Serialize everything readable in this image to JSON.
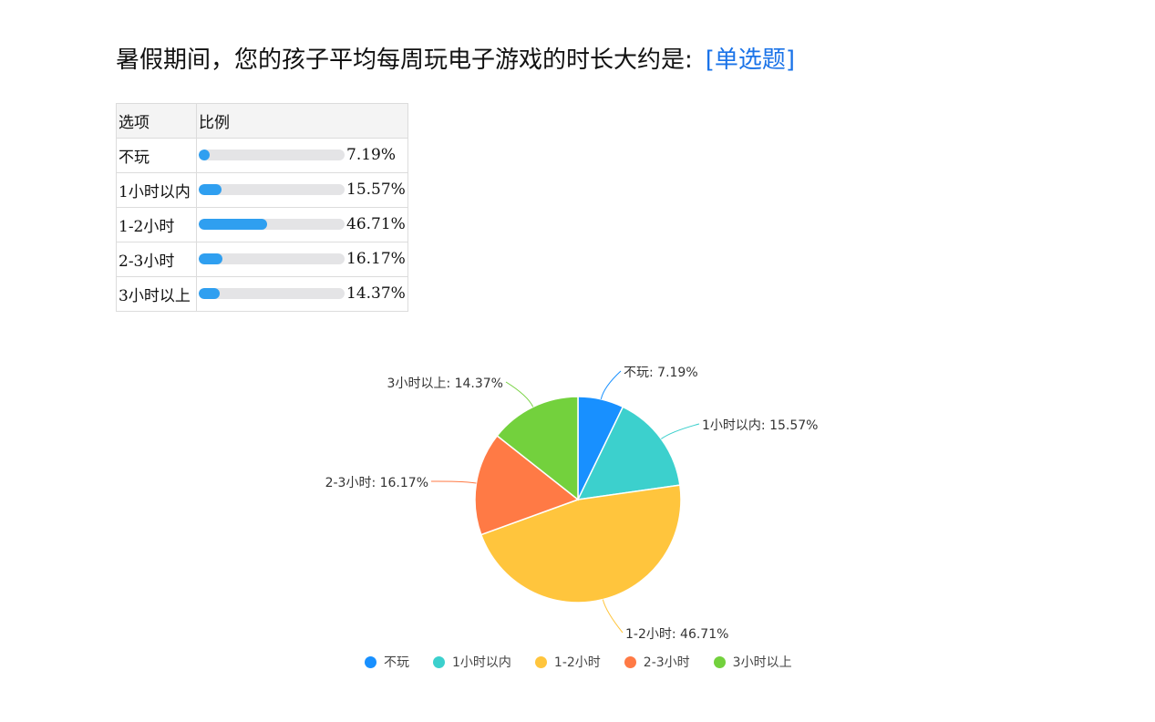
{
  "question": {
    "title": "暑假期间，您的孩子平均每周玩电子游戏的时长大约是:",
    "type_label": "[单选题]"
  },
  "table": {
    "headers": [
      "选项",
      "比例"
    ],
    "rows": [
      {
        "option": "不玩",
        "percent": 7.19,
        "percent_label": "7.19%"
      },
      {
        "option": "1小时以内",
        "percent": 15.57,
        "percent_label": "15.57%"
      },
      {
        "option": "1-2小时",
        "percent": 46.71,
        "percent_label": "46.71%"
      },
      {
        "option": "2-3小时",
        "percent": 16.17,
        "percent_label": "16.17%"
      },
      {
        "option": "3小时以上",
        "percent": 14.37,
        "percent_label": "14.37%"
      }
    ]
  },
  "chart_data": {
    "type": "pie",
    "categories": [
      "不玩",
      "1小时以内",
      "1-2小时",
      "2-3小时",
      "3小时以上"
    ],
    "values": [
      7.19,
      15.57,
      46.71,
      16.17,
      14.37
    ],
    "labels": [
      "不玩: 7.19%",
      "1小时以内: 15.57%",
      "1-2小时: 46.71%",
      "2-3小时: 16.17%",
      "3小时以上: 14.37%"
    ],
    "colors": [
      "#1890ff",
      "#3cd0cd",
      "#ffc53d",
      "#ff7a45",
      "#73d13d"
    ],
    "legend_position": "bottom"
  },
  "colors": {
    "bar_fill": "#2f9ff0",
    "bar_track": "#e4e4e6",
    "question_type": "#1a73e8"
  }
}
